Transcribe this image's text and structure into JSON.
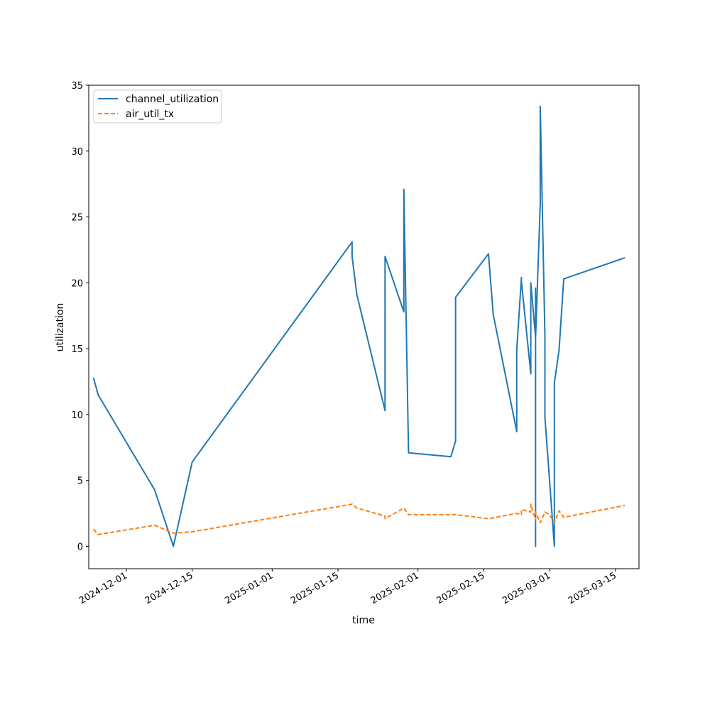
{
  "chart_data": {
    "type": "line",
    "xlabel": "time",
    "ylabel": "utilization",
    "ylim": [
      -1.7,
      35
    ],
    "xlim": [
      "2024-11-23",
      "2025-03-20"
    ],
    "x_ticks": [
      "2024-12-01",
      "2024-12-15",
      "2025-01-01",
      "2025-01-15",
      "2025-02-01",
      "2025-02-15",
      "2025-03-01",
      "2025-03-15"
    ],
    "y_ticks": [
      0,
      5,
      10,
      15,
      20,
      25,
      30,
      35
    ],
    "legend_position": "upper-left",
    "series": [
      {
        "name": "channel_utilization",
        "color": "#1f77b4",
        "style": "solid",
        "points": [
          [
            "2024-11-24",
            12.8
          ],
          [
            "2024-11-25",
            11.5
          ],
          [
            "2024-12-07",
            4.3
          ],
          [
            "2024-12-11",
            0.0
          ],
          [
            "2024-12-15",
            6.4
          ],
          [
            "2025-01-18",
            23.1
          ],
          [
            "2025-01-18",
            22.0
          ],
          [
            "2025-01-19",
            19.1
          ],
          [
            "2025-01-25",
            10.3
          ],
          [
            "2025-01-25",
            22.0
          ],
          [
            "2025-01-29",
            17.8
          ],
          [
            "2025-01-29",
            27.1
          ],
          [
            "2025-01-30",
            7.1
          ],
          [
            "2025-02-08",
            6.8
          ],
          [
            "2025-02-09",
            8.0
          ],
          [
            "2025-02-09",
            18.9
          ],
          [
            "2025-02-16",
            22.2
          ],
          [
            "2025-02-17",
            17.6
          ],
          [
            "2025-02-22",
            8.7
          ],
          [
            "2025-02-22",
            14.9
          ],
          [
            "2025-02-23",
            20.4
          ],
          [
            "2025-02-23",
            20.1
          ],
          [
            "2025-02-25",
            13.1
          ],
          [
            "2025-02-25",
            20.0
          ],
          [
            "2025-02-26",
            15.9
          ],
          [
            "2025-02-26",
            19.6
          ],
          [
            "2025-02-26",
            0.0
          ],
          [
            "2025-02-26",
            19.6
          ],
          [
            "2025-02-26",
            15.8
          ],
          [
            "2025-02-27",
            26.0
          ],
          [
            "2025-02-27",
            33.4
          ],
          [
            "2025-02-28",
            16.0
          ],
          [
            "2025-02-28",
            9.8
          ],
          [
            "2025-03-02",
            0.0
          ],
          [
            "2025-03-02",
            12.4
          ],
          [
            "2025-03-03",
            14.9
          ],
          [
            "2025-03-04",
            20.3
          ],
          [
            "2025-03-17",
            21.9
          ]
        ]
      },
      {
        "name": "air_util_tx",
        "color": "#ff7f0e",
        "style": "dashed",
        "points": [
          [
            "2024-11-24",
            1.3
          ],
          [
            "2024-11-25",
            0.9
          ],
          [
            "2024-12-07",
            1.6
          ],
          [
            "2024-12-11",
            1.0
          ],
          [
            "2024-12-15",
            1.1
          ],
          [
            "2025-01-18",
            3.2
          ],
          [
            "2025-01-19",
            2.9
          ],
          [
            "2025-01-25",
            2.3
          ],
          [
            "2025-01-25",
            2.1
          ],
          [
            "2025-01-29",
            2.9
          ],
          [
            "2025-01-30",
            2.4
          ],
          [
            "2025-02-09",
            2.4
          ],
          [
            "2025-02-16",
            2.1
          ],
          [
            "2025-02-22",
            2.5
          ],
          [
            "2025-02-23",
            2.4
          ],
          [
            "2025-02-23",
            2.8
          ],
          [
            "2025-02-25",
            2.6
          ],
          [
            "2025-02-25",
            3.2
          ],
          [
            "2025-02-26",
            2.0
          ],
          [
            "2025-02-26",
            2.6
          ],
          [
            "2025-02-27",
            1.8
          ],
          [
            "2025-02-28",
            2.6
          ],
          [
            "2025-03-01",
            2.4
          ],
          [
            "2025-03-02",
            1.8
          ],
          [
            "2025-03-03",
            2.7
          ],
          [
            "2025-03-04",
            2.2
          ],
          [
            "2025-03-17",
            3.1
          ]
        ]
      }
    ]
  }
}
